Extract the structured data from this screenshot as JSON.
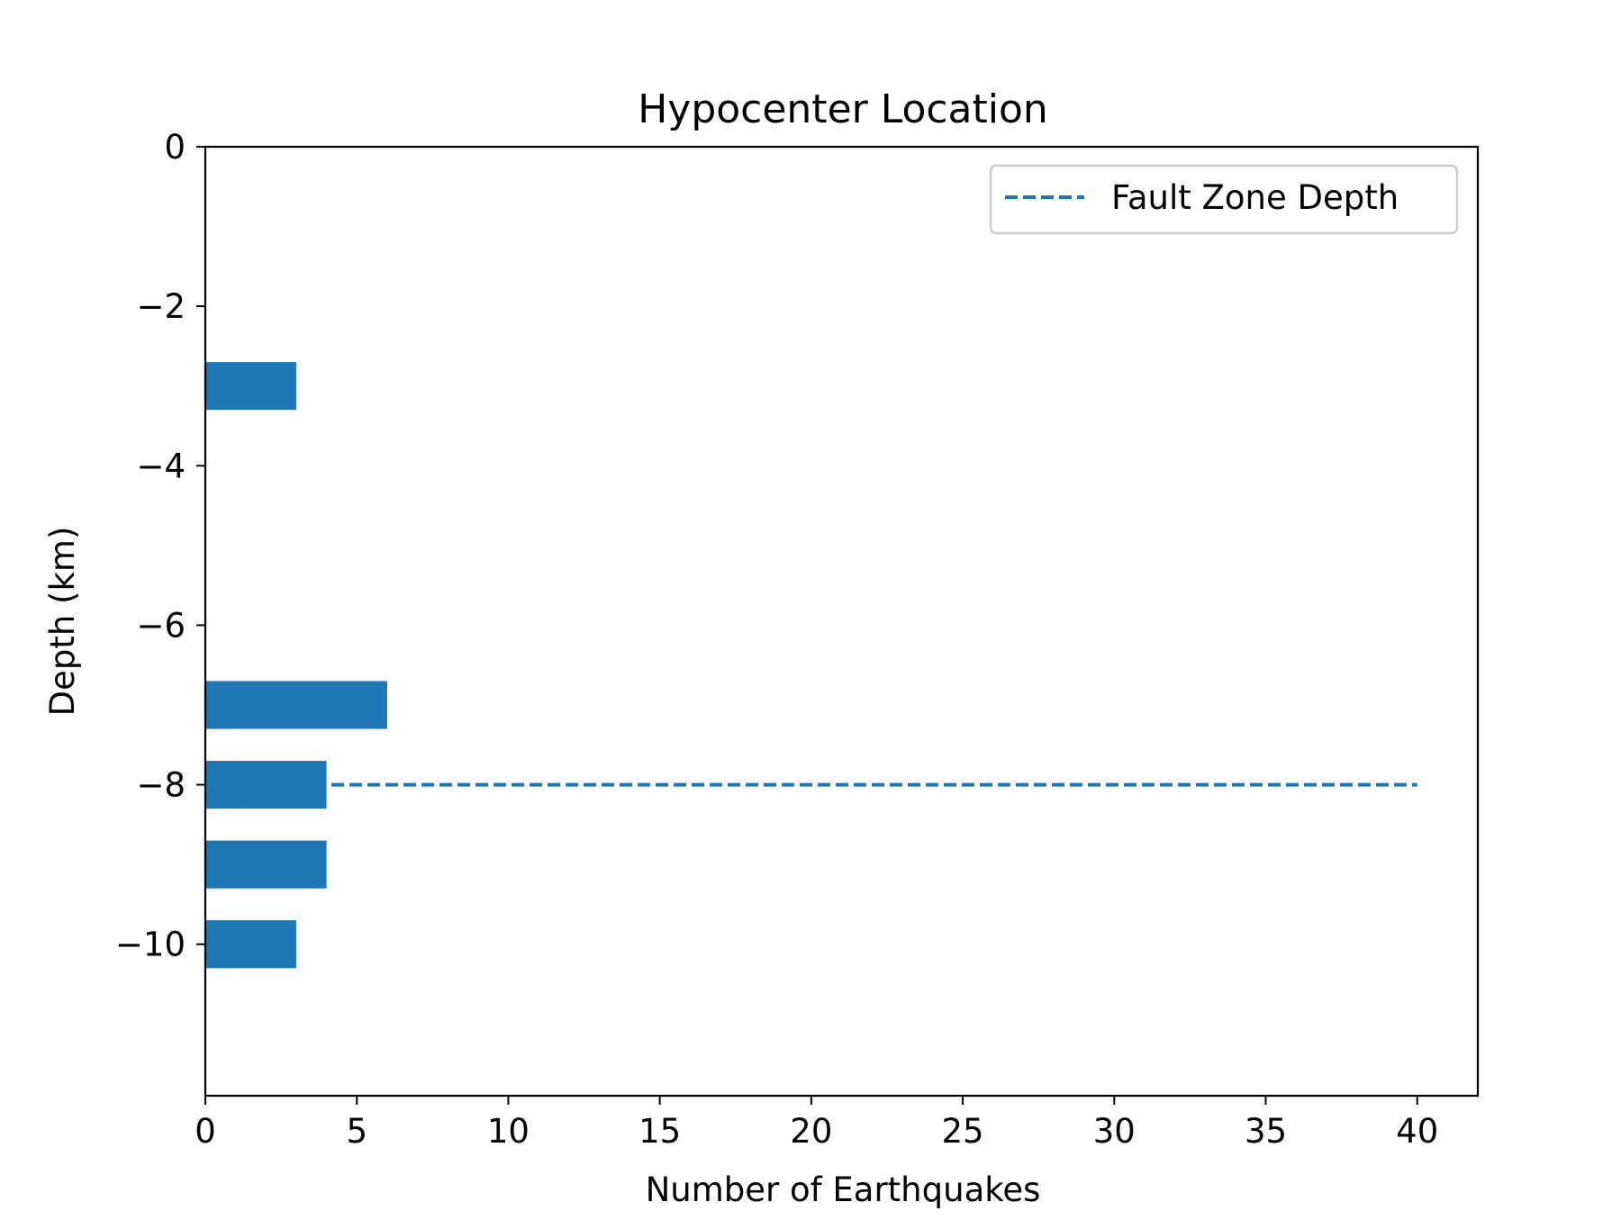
{
  "chart_data": {
    "type": "bar",
    "orientation": "horizontal",
    "title": "Hypocenter Location",
    "xlabel": "Number of Earthquakes",
    "ylabel": "Depth (km)",
    "xlim": [
      0,
      42
    ],
    "ylim": [
      -11.9,
      0
    ],
    "xticks": [
      0,
      5,
      10,
      15,
      20,
      25,
      30,
      35,
      40
    ],
    "yticks": [
      0,
      -2,
      -4,
      -6,
      -8,
      -10
    ],
    "ytick_labels": [
      "0",
      "−2",
      "−4",
      "−6",
      "−8",
      "−10"
    ],
    "bar_height_km": 0.6,
    "bars": [
      {
        "depth": -3,
        "count": 3
      },
      {
        "depth": -7,
        "count": 6
      },
      {
        "depth": -8,
        "count": 4
      },
      {
        "depth": -9,
        "count": 4
      },
      {
        "depth": -10,
        "count": 3
      }
    ],
    "reference_line": {
      "name": "Fault Zone Depth",
      "depth": -8,
      "x_range": [
        0,
        40
      ],
      "style": "dashed"
    },
    "legend": {
      "position": "top-right",
      "entries": [
        "Fault Zone Depth"
      ]
    },
    "grid": false,
    "colors": {
      "bar": "#1f77b4",
      "line": "#1f77b4",
      "axes": "#000000",
      "legend_border": "#cccccc"
    }
  }
}
